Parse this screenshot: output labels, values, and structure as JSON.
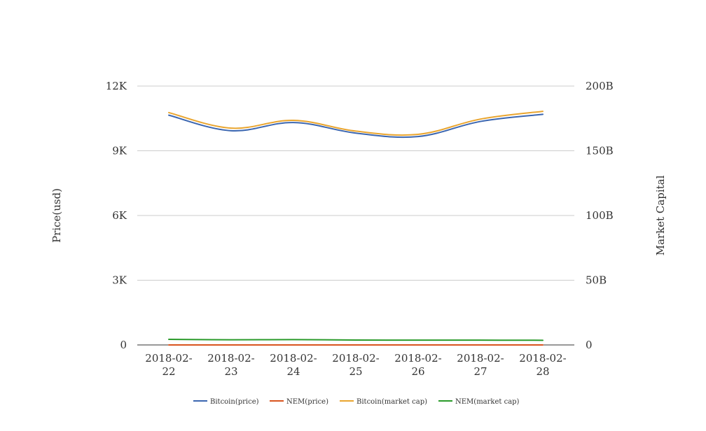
{
  "chart_data": {
    "type": "line",
    "categories": [
      "2018-02-22",
      "2018-02-23",
      "2018-02-24",
      "2018-02-25",
      "2018-02-26",
      "2018-02-27",
      "2018-02-28"
    ],
    "category_labels": [
      [
        "2018-02-",
        "22"
      ],
      [
        "2018-02-",
        "23"
      ],
      [
        "2018-02-",
        "24"
      ],
      [
        "2018-02-",
        "25"
      ],
      [
        "2018-02-",
        "26"
      ],
      [
        "2018-02-",
        "27"
      ],
      [
        "2018-02-",
        "28"
      ]
    ],
    "y_left": {
      "label": "Price(usd)",
      "ylim": [
        0,
        12000
      ],
      "ticks": [
        0,
        3000,
        6000,
        9000,
        12000
      ],
      "tick_labels": [
        "0",
        "3K",
        "6K",
        "9K",
        "12K"
      ]
    },
    "y_right": {
      "label": "Market Capital",
      "ylim": [
        0,
        200000000000
      ],
      "ticks": [
        0,
        50000000000,
        100000000000,
        150000000000,
        200000000000
      ],
      "tick_labels": [
        "0",
        "50B",
        "100B",
        "150B",
        "200B"
      ]
    },
    "grid": true,
    "legend_position": "bottom",
    "series": [
      {
        "name": "Bitcoin(price)",
        "axis": "left",
        "color": "#3b66b0",
        "values": [
          10650,
          9930,
          10310,
          9820,
          9660,
          10360,
          10690
        ]
      },
      {
        "name": "NEM(price)",
        "axis": "left",
        "color": "#d9541e",
        "values": [
          0.43,
          0.39,
          0.39,
          0.37,
          0.36,
          0.36,
          0.35
        ]
      },
      {
        "name": "Bitcoin(market cap)",
        "axis": "right",
        "color": "#e9a52f",
        "values": [
          179500000000,
          167500000000,
          173500000000,
          165200000000,
          162700000000,
          174500000000,
          180500000000
        ]
      },
      {
        "name": "NEM(market cap)",
        "axis": "right",
        "color": "#2a9a2a",
        "values": [
          4300000000,
          4000000000,
          4100000000,
          3800000000,
          3700000000,
          3700000000,
          3600000000
        ]
      }
    ]
  }
}
